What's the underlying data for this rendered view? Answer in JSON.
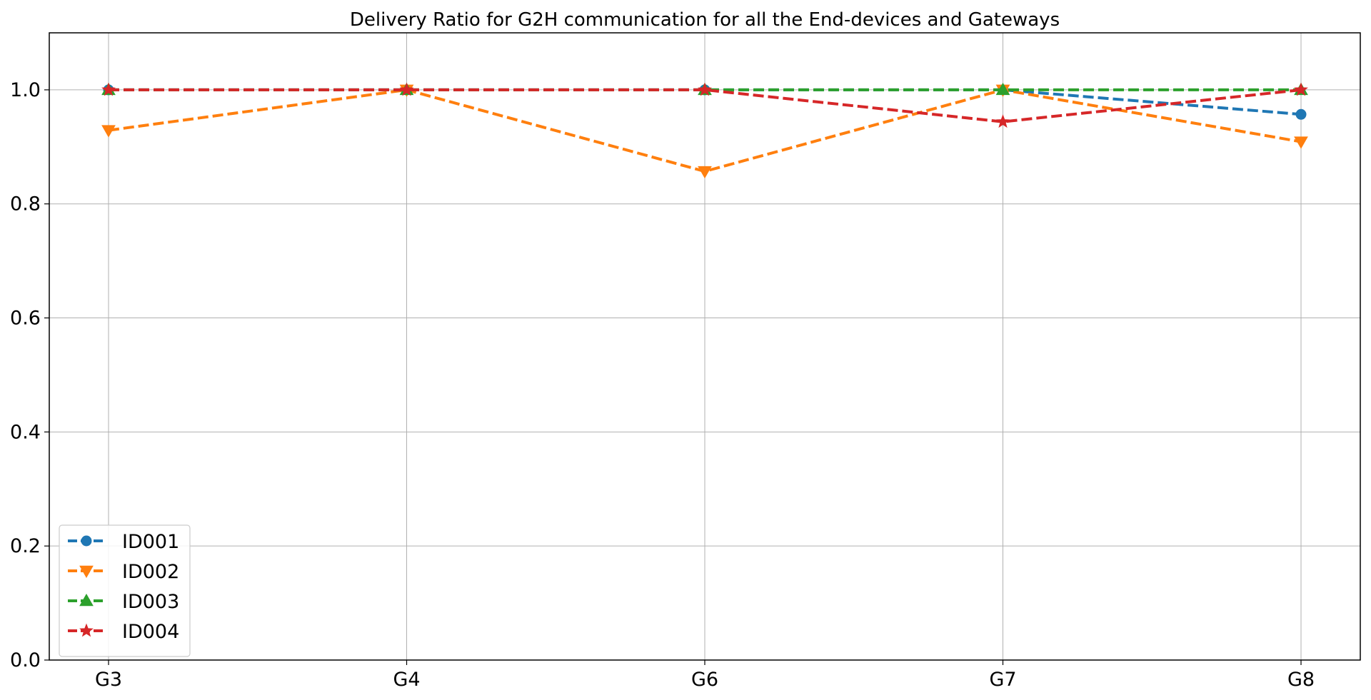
{
  "chart_data": {
    "type": "line",
    "title": "Delivery Ratio for G2H communication for all the End-devices and Gateways",
    "xlabel": "",
    "ylabel": "",
    "categories": [
      "G3",
      "G4",
      "G6",
      "G7",
      "G8"
    ],
    "ylim": [
      0.0,
      1.1
    ],
    "yticks": [
      0.0,
      0.2,
      0.4,
      0.6,
      0.8,
      1.0
    ],
    "ytick_labels": [
      "0.0",
      "0.2",
      "0.4",
      "0.6",
      "0.8",
      "1.0"
    ],
    "grid": true,
    "legend_position": "lower-left",
    "series": [
      {
        "name": "ID001",
        "color": "#1f77b4",
        "marker": "circle",
        "line_style": "dashed",
        "values": [
          1.0,
          1.0,
          1.0,
          1.0,
          0.957
        ]
      },
      {
        "name": "ID002",
        "color": "#ff7f0e",
        "marker": "triangle-down",
        "line_style": "dashed",
        "values": [
          0.929,
          1.0,
          0.857,
          1.0,
          0.909
        ]
      },
      {
        "name": "ID003",
        "color": "#2ca02c",
        "marker": "triangle-up",
        "line_style": "dashed",
        "values": [
          1.0,
          1.0,
          1.0,
          1.0,
          1.0
        ]
      },
      {
        "name": "ID004",
        "color": "#d62728",
        "marker": "star",
        "line_style": "dashed",
        "values": [
          1.0,
          1.0,
          1.0,
          0.944,
          1.0
        ]
      }
    ]
  }
}
